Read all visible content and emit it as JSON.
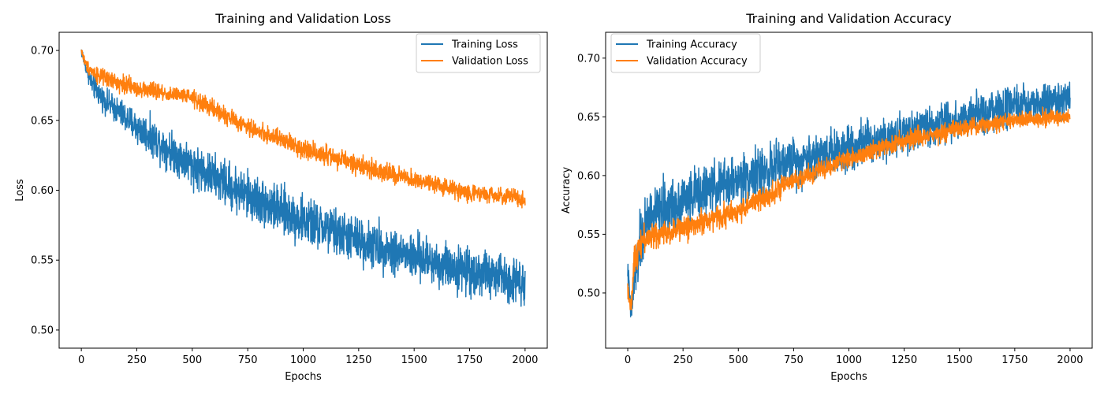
{
  "chart_data": [
    {
      "type": "line",
      "title": "Training and Validation Loss",
      "xlabel": "Epochs",
      "ylabel": "Loss",
      "xlim": [
        -100,
        2100
      ],
      "ylim": [
        0.487,
        0.713
      ],
      "xticks": [
        0,
        250,
        500,
        750,
        1000,
        1250,
        1500,
        1750,
        2000
      ],
      "xtick_labels": [
        "0",
        "250",
        "500",
        "750",
        "1000",
        "1250",
        "1500",
        "1750",
        "2000"
      ],
      "yticks": [
        0.5,
        0.55,
        0.6,
        0.65,
        0.7
      ],
      "ytick_labels": [
        "0.50",
        "0.55",
        "0.60",
        "0.65",
        "0.70"
      ],
      "grid": false,
      "legend": "top-right",
      "series": [
        {
          "name": "Training Loss",
          "color": "#1f77b4",
          "trend_x": [
            0,
            20,
            50,
            100,
            250,
            500,
            750,
            1000,
            1250,
            1500,
            1750,
            2000
          ],
          "trend_y": [
            0.7,
            0.688,
            0.675,
            0.665,
            0.645,
            0.618,
            0.596,
            0.578,
            0.564,
            0.552,
            0.542,
            0.535
          ],
          "noise_amplitude": [
            0.006,
            0.006,
            0.012,
            0.012,
            0.018,
            0.022,
            0.025,
            0.025,
            0.024,
            0.024,
            0.024,
            0.024
          ]
        },
        {
          "name": "Validation Loss",
          "color": "#ff7f0e",
          "trend_x": [
            0,
            20,
            50,
            100,
            250,
            500,
            750,
            1000,
            1250,
            1500,
            1750,
            2000
          ],
          "trend_y": [
            0.7,
            0.69,
            0.685,
            0.68,
            0.673,
            0.666,
            0.645,
            0.63,
            0.618,
            0.607,
            0.598,
            0.594
          ],
          "noise_amplitude": [
            0.004,
            0.006,
            0.008,
            0.009,
            0.009,
            0.009,
            0.009,
            0.01,
            0.01,
            0.009,
            0.009,
            0.009
          ]
        }
      ]
    },
    {
      "type": "line",
      "title": "Training and Validation Accuracy",
      "xlabel": "Epochs",
      "ylabel": "Accuracy",
      "xlim": [
        -100,
        2100
      ],
      "ylim": [
        0.453,
        0.722
      ],
      "xticks": [
        0,
        250,
        500,
        750,
        1000,
        1250,
        1500,
        1750,
        2000
      ],
      "xtick_labels": [
        "0",
        "250",
        "500",
        "750",
        "1000",
        "1250",
        "1500",
        "1750",
        "2000"
      ],
      "yticks": [
        0.5,
        0.55,
        0.6,
        0.65,
        0.7
      ],
      "ytick_labels": [
        "0.50",
        "0.55",
        "0.60",
        "0.65",
        "0.70"
      ],
      "grid": false,
      "legend": "top-left",
      "series": [
        {
          "name": "Training Accuracy",
          "color": "#1f77b4",
          "trend_x": [
            0,
            15,
            30,
            60,
            100,
            250,
            500,
            750,
            1000,
            1250,
            1500,
            1750,
            2000
          ],
          "trend_y": [
            0.52,
            0.48,
            0.51,
            0.545,
            0.565,
            0.58,
            0.597,
            0.612,
            0.625,
            0.637,
            0.648,
            0.658,
            0.665
          ],
          "noise_amplitude": [
            0.015,
            0.015,
            0.03,
            0.04,
            0.035,
            0.032,
            0.03,
            0.03,
            0.028,
            0.026,
            0.025,
            0.025,
            0.025
          ]
        },
        {
          "name": "Validation Accuracy",
          "color": "#ff7f0e",
          "trend_x": [
            0,
            15,
            30,
            60,
            100,
            250,
            500,
            750,
            1000,
            1250,
            1500,
            1750,
            2000
          ],
          "trend_y": [
            0.505,
            0.485,
            0.53,
            0.545,
            0.548,
            0.555,
            0.57,
            0.595,
            0.615,
            0.63,
            0.64,
            0.647,
            0.65
          ],
          "noise_amplitude": [
            0.01,
            0.012,
            0.018,
            0.018,
            0.016,
            0.015,
            0.014,
            0.013,
            0.012,
            0.012,
            0.011,
            0.01,
            0.01
          ]
        }
      ]
    }
  ]
}
